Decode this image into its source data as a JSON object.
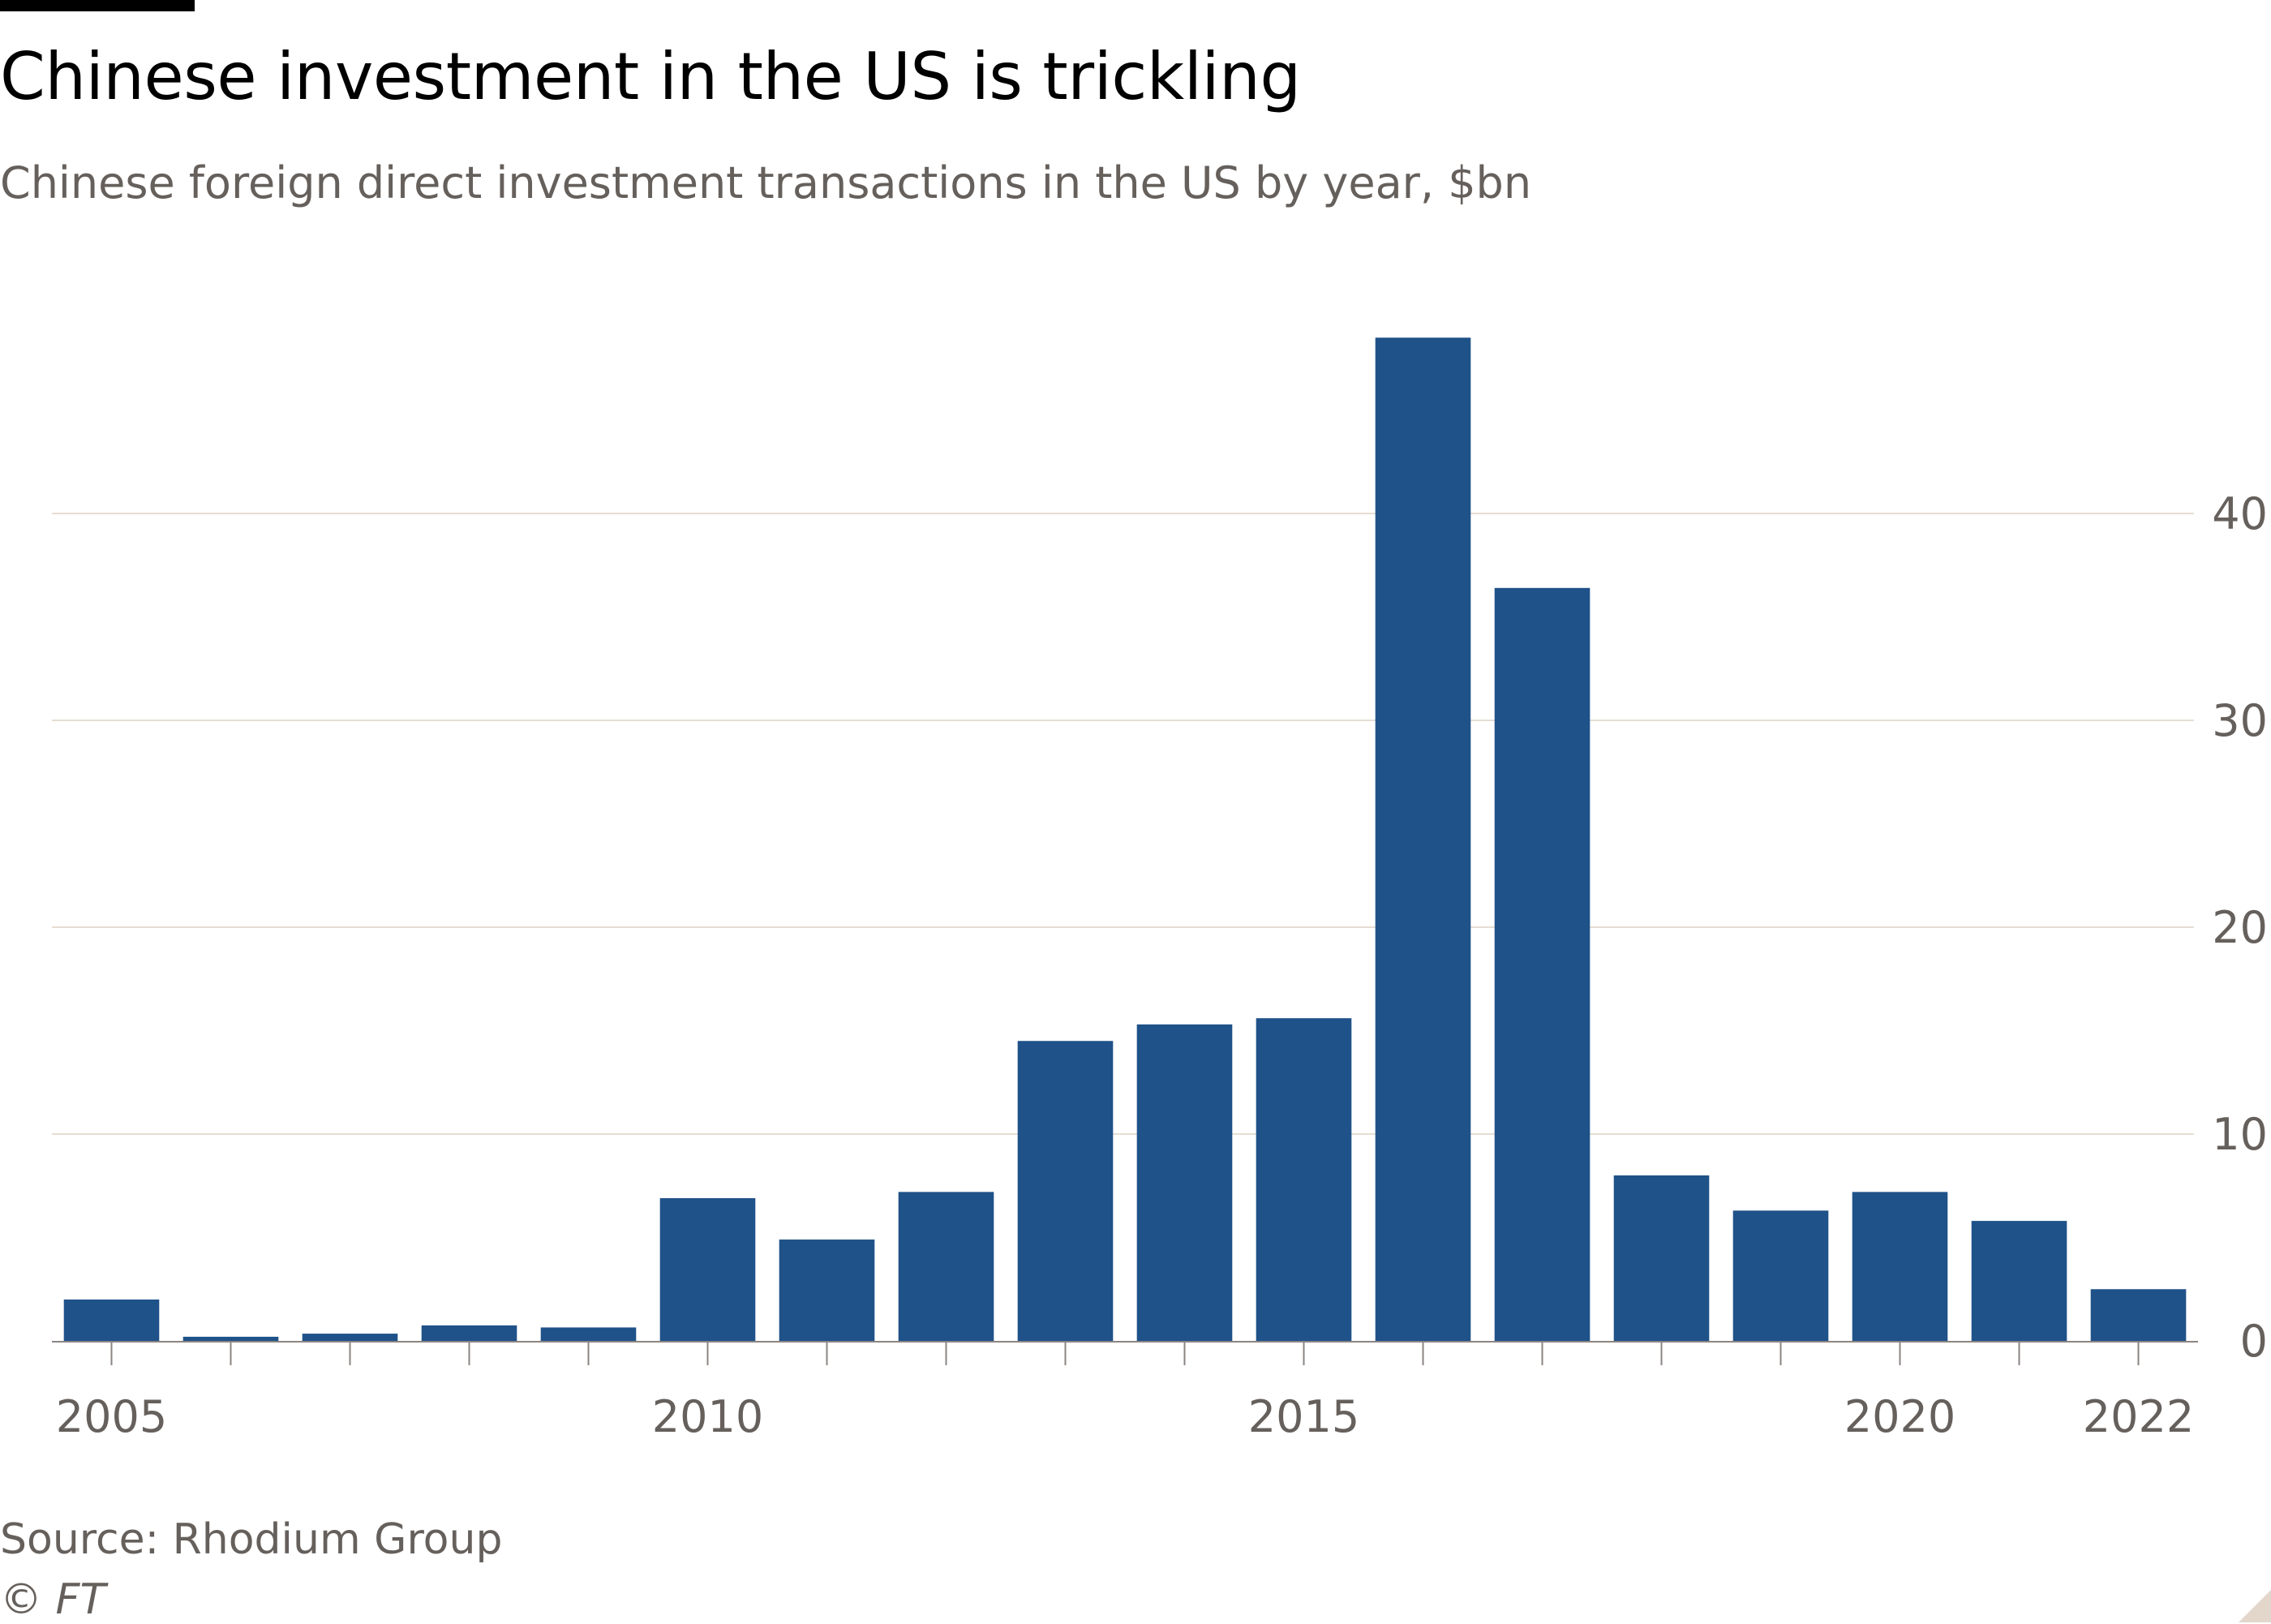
{
  "header": {
    "title": "Chinese investment in the US is trickling",
    "subtitle": "Chinese foreign direct investment transactions in the US by year, $bn"
  },
  "footer": {
    "source": "Source: Rhodium Group",
    "copyright": "© FT"
  },
  "colors": {
    "bar": "#1f5289",
    "gridline": "#e6ddd3",
    "axis": "#66605c",
    "text": "#66605c"
  },
  "chart_data": {
    "type": "bar",
    "title": "Chinese investment in the US is trickling",
    "subtitle": "Chinese foreign direct investment transactions in the US by year, $bn",
    "categories": [
      2005,
      2006,
      2007,
      2008,
      2009,
      2010,
      2011,
      2012,
      2013,
      2014,
      2015,
      2016,
      2017,
      2018,
      2019,
      2020,
      2021,
      2022
    ],
    "values": [
      2.0,
      0.2,
      0.35,
      0.75,
      0.65,
      6.9,
      4.9,
      7.2,
      14.5,
      15.3,
      15.6,
      48.5,
      36.4,
      8.0,
      6.3,
      7.2,
      5.8,
      2.5
    ],
    "xticks": [
      2005,
      2010,
      2015,
      2020,
      2022
    ],
    "yticks": [
      0,
      10,
      20,
      30,
      40
    ],
    "ylim": [
      0,
      50
    ],
    "y_axis_side": "right",
    "grid": true,
    "source": "Source: Rhodium Group"
  }
}
